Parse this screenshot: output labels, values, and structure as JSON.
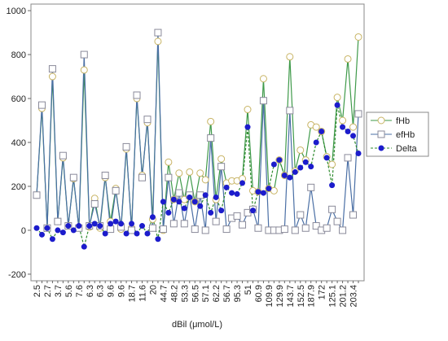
{
  "chart_data": {
    "type": "line",
    "x_label": "dBil (μmol/L)",
    "categories": [
      "2.5",
      null,
      "2.7",
      null,
      "3.7",
      null,
      "5.6",
      null,
      "7.6",
      null,
      "6.3",
      null,
      "6.3",
      null,
      "9.6",
      null,
      "9.6",
      null,
      "18.7",
      null,
      "11.6",
      null,
      "20",
      null,
      "44.7",
      null,
      "48.2",
      null,
      "53.3",
      null,
      "56.5",
      null,
      "57.1",
      null,
      "62.2",
      null,
      "56.7",
      null,
      "95.3",
      null,
      "51",
      null,
      "60.9",
      null,
      "109.9",
      null,
      "129.9",
      null,
      "143.7",
      null,
      "152.5",
      null,
      "187.9",
      null,
      "172",
      null,
      "125.1",
      null,
      "201.2",
      null,
      "203.4",
      null
    ],
    "ylim": [
      -230,
      1030
    ],
    "yticks": [
      -200,
      0,
      200,
      400,
      600,
      800,
      1000
    ],
    "legend": "right",
    "series": [
      {
        "name": "fHb",
        "color": "#c8b464",
        "line_color": "#3f9a4a",
        "marker": "circle",
        "dash": "none",
        "values": [
          160,
          555,
          10,
          700,
          40,
          330,
          20,
          235,
          10,
          730,
          15,
          145,
          10,
          240,
          40,
          190,
          5,
          370,
          10,
          600,
          250,
          490,
          50,
          860,
          0,
          310,
          140,
          260,
          140,
          265,
          130,
          260,
          230,
          495,
          140,
          325,
          215,
          225,
          225,
          235,
          550,
          180,
          175,
          690,
          190,
          180,
          320,
          250,
          790,
          270,
          365,
          320,
          480,
          470,
          450,
          335,
          300,
          605,
          500,
          780,
          470,
          880
        ]
      },
      {
        "name": "efHb",
        "color": "#8a8a9a",
        "line_color": "#4a6fa5",
        "marker": "square",
        "dash": "none",
        "values": [
          160,
          570,
          10,
          735,
          40,
          340,
          20,
          240,
          10,
          800,
          20,
          120,
          20,
          250,
          5,
          180,
          15,
          380,
          0,
          615,
          240,
          505,
          10,
          900,
          5,
          240,
          30,
          170,
          30,
          160,
          5,
          160,
          0,
          420,
          40,
          290,
          5,
          55,
          65,
          25,
          80,
          95,
          10,
          590,
          0,
          0,
          0,
          5,
          545,
          0,
          70,
          10,
          195,
          20,
          0,
          10,
          95,
          40,
          0,
          330,
          70,
          530
        ]
      },
      {
        "name": "Delta",
        "color": "#1c1ccc",
        "line_color": "#2e8b2e",
        "marker": "dot",
        "dash": "3,2",
        "values": [
          10,
          -20,
          10,
          -40,
          0,
          -10,
          20,
          0,
          20,
          -75,
          20,
          30,
          20,
          -15,
          30,
          40,
          30,
          -15,
          30,
          -15,
          20,
          -15,
          60,
          -40,
          130,
          80,
          140,
          130,
          100,
          150,
          130,
          110,
          160,
          80,
          150,
          90,
          195,
          170,
          165,
          215,
          470,
          90,
          175,
          170,
          190,
          300,
          320,
          250,
          240,
          265,
          285,
          310,
          290,
          400,
          450,
          330,
          205,
          570,
          470,
          450,
          430,
          350
        ]
      }
    ]
  }
}
